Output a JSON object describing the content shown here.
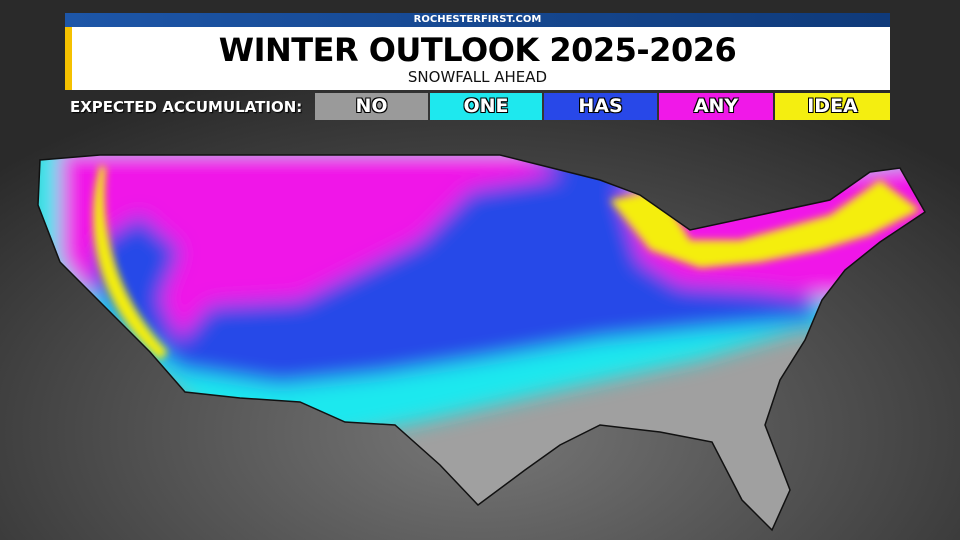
{
  "header": {
    "site": "ROCHESTERFIRST.COM",
    "title": "WINTER OUTLOOK 2025-2026",
    "subtitle": "SNOWFALL AHEAD"
  },
  "legend": {
    "label": "EXPECTED ACCUMULATION:",
    "items": [
      {
        "label": "NO",
        "color": "#9a9a9a"
      },
      {
        "label": "ONE",
        "color": "#1ee8ee"
      },
      {
        "label": "HAS",
        "color": "#2848e8"
      },
      {
        "label": "ANY",
        "color": "#f018e8"
      },
      {
        "label": "IDEA",
        "color": "#f4ee10"
      }
    ]
  },
  "accent_color": "#f5c100"
}
